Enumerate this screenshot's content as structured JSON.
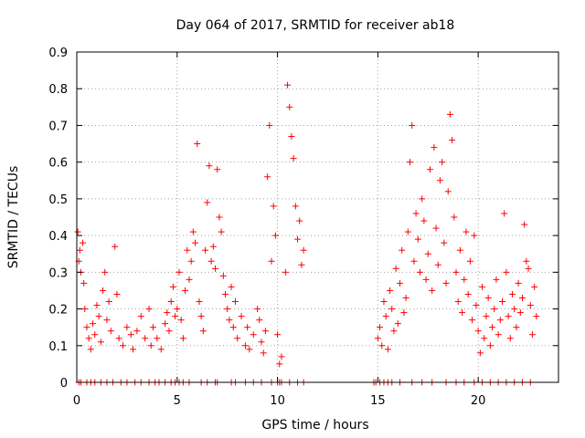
{
  "chart_data": {
    "type": "scatter",
    "title": "Day 064 of 2017, SRMTID for receiver ab18",
    "xlabel": "GPS time / hours",
    "ylabel": "SRMTID / TECUs",
    "xlim": [
      0,
      24
    ],
    "ylim": [
      0,
      0.9
    ],
    "xticks": [
      0,
      5,
      10,
      15,
      20
    ],
    "yticks": [
      0,
      0.1,
      0.2,
      0.3,
      0.4,
      0.5,
      0.6,
      0.7,
      0.8,
      0.9
    ],
    "grid": true,
    "marker": "+",
    "color": "#ff0000",
    "series": [
      {
        "name": "SRMTID",
        "points": [
          [
            0.05,
            0.41
          ],
          [
            0.1,
            0.33
          ],
          [
            0.15,
            0.36
          ],
          [
            0.2,
            0.3
          ],
          [
            0.3,
            0.38
          ],
          [
            0.35,
            0.27
          ],
          [
            0.4,
            0.2
          ],
          [
            0.5,
            0.15
          ],
          [
            0.6,
            0.12
          ],
          [
            0.7,
            0.09
          ],
          [
            0.8,
            0.16
          ],
          [
            0.9,
            0.13
          ],
          [
            1.0,
            0.21
          ],
          [
            1.1,
            0.18
          ],
          [
            1.2,
            0.11
          ],
          [
            1.3,
            0.25
          ],
          [
            1.4,
            0.3
          ],
          [
            1.5,
            0.17
          ],
          [
            1.6,
            0.22
          ],
          [
            1.7,
            0.14
          ],
          [
            1.9,
            0.37
          ],
          [
            2.0,
            0.24
          ],
          [
            2.1,
            0.12
          ],
          [
            2.3,
            0.1
          ],
          [
            2.5,
            0.15
          ],
          [
            2.7,
            0.13
          ],
          [
            2.8,
            0.09
          ],
          [
            3.0,
            0.14
          ],
          [
            3.2,
            0.18
          ],
          [
            3.4,
            0.12
          ],
          [
            3.6,
            0.2
          ],
          [
            3.7,
            0.1
          ],
          [
            3.8,
            0.15
          ],
          [
            4.0,
            0.12
          ],
          [
            4.2,
            0.09
          ],
          [
            4.4,
            0.16
          ],
          [
            4.5,
            0.19
          ],
          [
            4.6,
            0.14
          ],
          [
            4.7,
            0.22
          ],
          [
            4.8,
            0.26
          ],
          [
            4.9,
            0.18
          ],
          [
            5.0,
            0.2
          ],
          [
            5.1,
            0.3
          ],
          [
            5.2,
            0.17
          ],
          [
            5.3,
            0.12
          ],
          [
            5.4,
            0.25
          ],
          [
            5.5,
            0.36
          ],
          [
            5.6,
            0.28
          ],
          [
            5.7,
            0.33
          ],
          [
            5.8,
            0.41
          ],
          [
            5.9,
            0.38
          ],
          [
            6.0,
            0.65
          ],
          [
            6.1,
            0.22
          ],
          [
            6.2,
            0.18
          ],
          [
            6.3,
            0.14
          ],
          [
            6.4,
            0.36
          ],
          [
            6.5,
            0.49
          ],
          [
            6.6,
            0.59
          ],
          [
            6.7,
            0.33
          ],
          [
            6.8,
            0.37
          ],
          [
            6.9,
            0.31
          ],
          [
            7.0,
            0.58
          ],
          [
            7.1,
            0.45
          ],
          [
            7.2,
            0.41
          ],
          [
            7.3,
            0.29
          ],
          [
            7.4,
            0.24
          ],
          [
            7.5,
            0.2
          ],
          [
            7.6,
            0.17
          ],
          [
            7.7,
            0.26
          ],
          [
            7.8,
            0.15
          ],
          [
            7.9,
            0.22
          ],
          [
            8.0,
            0.12
          ],
          [
            8.2,
            0.18
          ],
          [
            8.4,
            0.1
          ],
          [
            8.5,
            0.15
          ],
          [
            8.6,
            0.09
          ],
          [
            8.8,
            0.13
          ],
          [
            9.0,
            0.2
          ],
          [
            9.1,
            0.17
          ],
          [
            9.2,
            0.11
          ],
          [
            9.3,
            0.08
          ],
          [
            9.4,
            0.14
          ],
          [
            9.5,
            0.56
          ],
          [
            9.6,
            0.7
          ],
          [
            9.7,
            0.33
          ],
          [
            9.8,
            0.48
          ],
          [
            9.9,
            0.4
          ],
          [
            10.0,
            0.13
          ],
          [
            10.1,
            0.05
          ],
          [
            10.2,
            0.07
          ],
          [
            10.4,
            0.3
          ],
          [
            10.5,
            0.81
          ],
          [
            10.6,
            0.75
          ],
          [
            10.7,
            0.67
          ],
          [
            10.8,
            0.61
          ],
          [
            10.9,
            0.48
          ],
          [
            11.0,
            0.39
          ],
          [
            11.1,
            0.44
          ],
          [
            11.2,
            0.32
          ],
          [
            11.3,
            0.36
          ],
          [
            15.0,
            0.12
          ],
          [
            15.1,
            0.15
          ],
          [
            15.2,
            0.1
          ],
          [
            15.3,
            0.22
          ],
          [
            15.4,
            0.18
          ],
          [
            15.5,
            0.09
          ],
          [
            15.6,
            0.25
          ],
          [
            15.7,
            0.2
          ],
          [
            15.8,
            0.14
          ],
          [
            15.9,
            0.31
          ],
          [
            16.0,
            0.16
          ],
          [
            16.1,
            0.27
          ],
          [
            16.2,
            0.36
          ],
          [
            16.3,
            0.19
          ],
          [
            16.4,
            0.23
          ],
          [
            16.5,
            0.41
          ],
          [
            16.6,
            0.6
          ],
          [
            16.7,
            0.7
          ],
          [
            16.8,
            0.33
          ],
          [
            16.9,
            0.46
          ],
          [
            17.0,
            0.39
          ],
          [
            17.1,
            0.3
          ],
          [
            17.2,
            0.5
          ],
          [
            17.3,
            0.44
          ],
          [
            17.4,
            0.28
          ],
          [
            17.5,
            0.35
          ],
          [
            17.6,
            0.58
          ],
          [
            17.7,
            0.25
          ],
          [
            17.8,
            0.64
          ],
          [
            17.9,
            0.42
          ],
          [
            18.0,
            0.32
          ],
          [
            18.1,
            0.55
          ],
          [
            18.2,
            0.6
          ],
          [
            18.3,
            0.38
          ],
          [
            18.4,
            0.27
          ],
          [
            18.5,
            0.52
          ],
          [
            18.6,
            0.73
          ],
          [
            18.7,
            0.66
          ],
          [
            18.8,
            0.45
          ],
          [
            18.9,
            0.3
          ],
          [
            19.0,
            0.22
          ],
          [
            19.1,
            0.36
          ],
          [
            19.2,
            0.19
          ],
          [
            19.3,
            0.28
          ],
          [
            19.4,
            0.41
          ],
          [
            19.5,
            0.24
          ],
          [
            19.6,
            0.33
          ],
          [
            19.7,
            0.17
          ],
          [
            19.8,
            0.4
          ],
          [
            19.9,
            0.21
          ],
          [
            20.0,
            0.14
          ],
          [
            20.1,
            0.08
          ],
          [
            20.2,
            0.26
          ],
          [
            20.3,
            0.12
          ],
          [
            20.4,
            0.18
          ],
          [
            20.5,
            0.23
          ],
          [
            20.6,
            0.1
          ],
          [
            20.7,
            0.15
          ],
          [
            20.8,
            0.2
          ],
          [
            20.9,
            0.28
          ],
          [
            21.0,
            0.13
          ],
          [
            21.1,
            0.17
          ],
          [
            21.2,
            0.22
          ],
          [
            21.3,
            0.46
          ],
          [
            21.4,
            0.3
          ],
          [
            21.5,
            0.18
          ],
          [
            21.6,
            0.12
          ],
          [
            21.7,
            0.24
          ],
          [
            21.8,
            0.2
          ],
          [
            21.9,
            0.15
          ],
          [
            22.0,
            0.27
          ],
          [
            22.1,
            0.19
          ],
          [
            22.2,
            0.23
          ],
          [
            22.3,
            0.43
          ],
          [
            22.4,
            0.33
          ],
          [
            22.5,
            0.31
          ],
          [
            22.6,
            0.21
          ],
          [
            22.7,
            0.13
          ],
          [
            22.8,
            0.26
          ],
          [
            22.9,
            0.18
          ]
        ]
      }
    ],
    "zero_points_x": [
      0.1,
      0.2,
      0.5,
      0.7,
      0.9,
      1.2,
      1.5,
      1.8,
      2.2,
      2.5,
      2.9,
      3.2,
      3.6,
      3.9,
      4.1,
      4.4,
      4.7,
      4.9,
      5.1,
      5.3,
      5.6,
      6.2,
      6.5,
      6.9,
      7.0,
      7.7,
      7.9,
      8.4,
      8.8,
      9.2,
      9.7,
      10.0,
      10.1,
      10.2,
      10.6,
      11.0,
      11.3,
      14.8,
      14.9,
      15.1,
      15.3,
      15.5,
      15.7,
      16.1,
      16.7,
      17.2,
      17.7,
      18.4,
      18.9,
      19.3,
      19.8,
      20.2,
      20.6,
      21.0,
      21.4,
      21.8,
      22.2,
      22.6
    ]
  }
}
